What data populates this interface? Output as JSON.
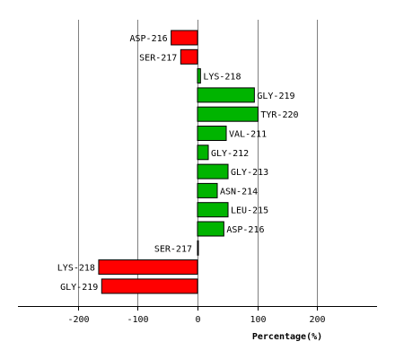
{
  "chart_data": {
    "type": "bar",
    "orientation": "horizontal",
    "title": "",
    "xlabel": "Percentage(%)",
    "ylabel": "",
    "xlim": [
      -290,
      300
    ],
    "xticks": [
      -200,
      -100,
      0,
      100,
      200
    ],
    "xtick_labels": [
      "-200",
      "-100",
      "0",
      "100",
      "200"
    ],
    "grid": "vertical",
    "legend": "none",
    "colors": {
      "negative": "#ff0000",
      "positive": "#00b400",
      "edge": "#000000",
      "grid": "#808080"
    },
    "categories": [
      "ASP-216",
      "SER-217",
      "LYS-218",
      "GLY-219",
      "TYR-220",
      "VAL-211",
      "GLY-212",
      "GLY-213",
      "ASN-214",
      "LEU-215",
      "ASP-216",
      "SER-217",
      "LYS-218",
      "GLY-219"
    ],
    "values": [
      -44,
      -28,
      5,
      95,
      101,
      48,
      18,
      51,
      33,
      51,
      44,
      0,
      -165,
      -160
    ]
  }
}
